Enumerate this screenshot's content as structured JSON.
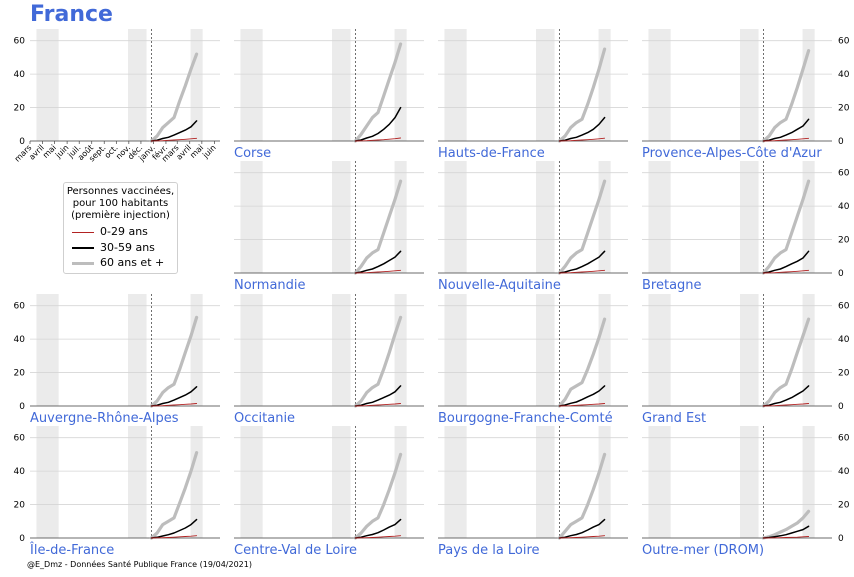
{
  "figure_title": "France",
  "footer": "@E_Dmz - Données Santé Publique France (19/04/2021)",
  "legend": {
    "title": "Personnes vaccinées,\npour 100 habitants\n(première injection)",
    "entries": [
      {
        "label": "0-29 ans",
        "color": "#b22222"
      },
      {
        "label": "30-59 ans",
        "color": "#000000"
      },
      {
        "label": "60 ans et +",
        "color": "#bdbdbd"
      }
    ]
  },
  "colors": {
    "title": "#4169d8",
    "shade": "#ebebeb",
    "grid": "#d6d6d6",
    "young": "#b22222",
    "middle": "#000000",
    "old": "#bdbdbd"
  },
  "chart_data": {
    "type": "line",
    "x_axis": {
      "range": [
        "2020-03-01",
        "2021-06-15"
      ],
      "month_ticks": [
        "mars",
        "avril",
        "mai",
        "juin",
        "juil.",
        "août",
        "sept.",
        "oct.",
        "nov.",
        "déc.",
        "janv.",
        "févr.",
        "mars",
        "avril",
        "mai",
        "juin"
      ]
    },
    "ylim": [
      0,
      67
    ],
    "yticks": [
      0,
      20,
      40,
      60
    ],
    "shaded_periods": [
      [
        "2020-03-17",
        "2020-05-11"
      ],
      [
        "2020-10-30",
        "2020-12-15"
      ],
      [
        "2021-04-03",
        "2021-05-03"
      ]
    ],
    "vaccination_start": "2020-12-27",
    "dates": [
      "2020-12-27",
      "2021-01-10",
      "2021-01-24",
      "2021-02-07",
      "2021-02-21",
      "2021-03-07",
      "2021-03-21",
      "2021-04-04",
      "2021-04-18"
    ],
    "regions": [
      {
        "name": "France",
        "old": [
          0,
          3,
          8,
          11,
          14,
          24,
          33,
          43,
          52
        ],
        "middle": [
          0,
          0.5,
          1.5,
          2.2,
          3.5,
          5,
          6.5,
          8.5,
          12
        ],
        "young": [
          0,
          0.1,
          0.2,
          0.4,
          0.6,
          0.8,
          1.0,
          1.3,
          1.6
        ]
      },
      {
        "name": "Corse",
        "old": [
          0,
          4,
          9,
          14,
          17,
          27,
          37,
          47,
          58
        ],
        "middle": [
          0,
          0.6,
          1.8,
          2.8,
          4.5,
          7,
          10,
          14,
          20
        ],
        "young": [
          0,
          0.1,
          0.2,
          0.4,
          0.6,
          0.8,
          1.1,
          1.4,
          1.8
        ]
      },
      {
        "name": "Hauts-de-France",
        "old": [
          0,
          3,
          8,
          11,
          13,
          22,
          32,
          43,
          55
        ],
        "middle": [
          0,
          0.5,
          1.5,
          2.2,
          3.5,
          5,
          7,
          10,
          14
        ],
        "young": [
          0,
          0.1,
          0.2,
          0.4,
          0.6,
          0.8,
          1.0,
          1.3,
          1.7
        ]
      },
      {
        "name": "Provence-Alpes-Côte d'Azur",
        "old": [
          0,
          3,
          8,
          11,
          13,
          22,
          32,
          43,
          54
        ],
        "middle": [
          0,
          0.5,
          1.5,
          2.2,
          3.5,
          5,
          7,
          9,
          13
        ],
        "young": [
          0,
          0.1,
          0.2,
          0.4,
          0.6,
          0.8,
          1.0,
          1.3,
          1.6
        ]
      },
      {
        "name": "Normandie",
        "old": [
          0,
          4,
          9,
          12,
          14,
          24,
          34,
          44,
          55
        ],
        "middle": [
          0,
          0.6,
          1.6,
          2.4,
          3.8,
          5.5,
          7.5,
          9.5,
          13
        ],
        "young": [
          0,
          0.1,
          0.2,
          0.4,
          0.6,
          0.8,
          1.0,
          1.3,
          1.6
        ]
      },
      {
        "name": "Nouvelle-Aquitaine",
        "old": [
          0,
          4,
          9,
          12,
          14,
          24,
          34,
          44,
          55
        ],
        "middle": [
          0,
          0.6,
          1.6,
          2.4,
          3.8,
          5.5,
          7.5,
          9.5,
          13
        ],
        "young": [
          0,
          0.1,
          0.2,
          0.4,
          0.6,
          0.8,
          1.0,
          1.3,
          1.6
        ]
      },
      {
        "name": "Bretagne",
        "old": [
          0,
          4,
          9,
          12,
          14,
          24,
          34,
          44,
          55
        ],
        "middle": [
          0,
          0.6,
          1.6,
          2.4,
          3.8,
          5.5,
          7,
          9,
          13
        ],
        "young": [
          0,
          0.1,
          0.2,
          0.4,
          0.6,
          0.8,
          1.0,
          1.3,
          1.6
        ]
      },
      {
        "name": "Auvergne-Rhône-Alpes",
        "old": [
          0,
          3,
          8,
          11,
          13,
          22,
          32,
          42,
          53
        ],
        "middle": [
          0,
          0.5,
          1.5,
          2.2,
          3.5,
          5,
          6.5,
          8.5,
          11.5
        ],
        "young": [
          0,
          0.1,
          0.2,
          0.4,
          0.6,
          0.8,
          1.0,
          1.2,
          1.5
        ]
      },
      {
        "name": "Occitanie",
        "old": [
          0,
          3,
          8,
          11,
          13,
          22,
          32,
          43,
          53
        ],
        "middle": [
          0,
          0.5,
          1.5,
          2.2,
          3.5,
          5,
          6.5,
          8.5,
          12
        ],
        "young": [
          0,
          0.1,
          0.2,
          0.4,
          0.6,
          0.8,
          1.0,
          1.2,
          1.5
        ]
      },
      {
        "name": "Bourgogne-Franche-Comté",
        "old": [
          0,
          4,
          10,
          12,
          14,
          22,
          31,
          41,
          52
        ],
        "middle": [
          0,
          0.6,
          1.6,
          2.4,
          3.8,
          5.5,
          7,
          9,
          12
        ],
        "young": [
          0,
          0.1,
          0.2,
          0.4,
          0.6,
          0.8,
          1.0,
          1.2,
          1.5
        ]
      },
      {
        "name": "Grand Est",
        "old": [
          0,
          3,
          8,
          11,
          13,
          22,
          32,
          42,
          52
        ],
        "middle": [
          0,
          0.5,
          1.5,
          2.2,
          3.5,
          5,
          7,
          9,
          12
        ],
        "young": [
          0,
          0.1,
          0.2,
          0.4,
          0.6,
          0.8,
          1.0,
          1.2,
          1.5
        ]
      },
      {
        "name": "Île-de-France",
        "old": [
          0,
          3,
          8,
          10,
          12,
          21,
          30,
          40,
          51
        ],
        "middle": [
          0,
          0.4,
          1.2,
          2,
          3,
          4.5,
          6,
          8,
          11
        ],
        "young": [
          0,
          0.1,
          0.2,
          0.3,
          0.5,
          0.7,
          0.9,
          1.1,
          1.4
        ]
      },
      {
        "name": "Centre-Val de Loire",
        "old": [
          0,
          3,
          7,
          10,
          12,
          20,
          29,
          39,
          50
        ],
        "middle": [
          0,
          0.5,
          1.4,
          2.1,
          3.2,
          4.8,
          6.5,
          8,
          11
        ],
        "young": [
          0,
          0.1,
          0.2,
          0.3,
          0.5,
          0.7,
          0.9,
          1.1,
          1.4
        ]
      },
      {
        "name": "Pays de la Loire",
        "old": [
          0,
          4,
          8,
          10,
          12,
          20,
          29,
          39,
          50
        ],
        "middle": [
          0,
          0.5,
          1.4,
          2.1,
          3.2,
          4.8,
          6.5,
          8,
          11
        ],
        "young": [
          0,
          0.1,
          0.2,
          0.3,
          0.5,
          0.7,
          0.9,
          1.1,
          1.4
        ]
      },
      {
        "name": "Outre-mer (DROM)",
        "old": [
          0,
          0.8,
          2,
          3.5,
          5,
          7,
          9,
          12,
          16
        ],
        "middle": [
          0,
          0.3,
          0.8,
          1.3,
          2,
          3,
          4,
          5,
          7
        ],
        "young": [
          0,
          0.05,
          0.1,
          0.2,
          0.3,
          0.4,
          0.5,
          0.7,
          0.9
        ]
      }
    ]
  }
}
